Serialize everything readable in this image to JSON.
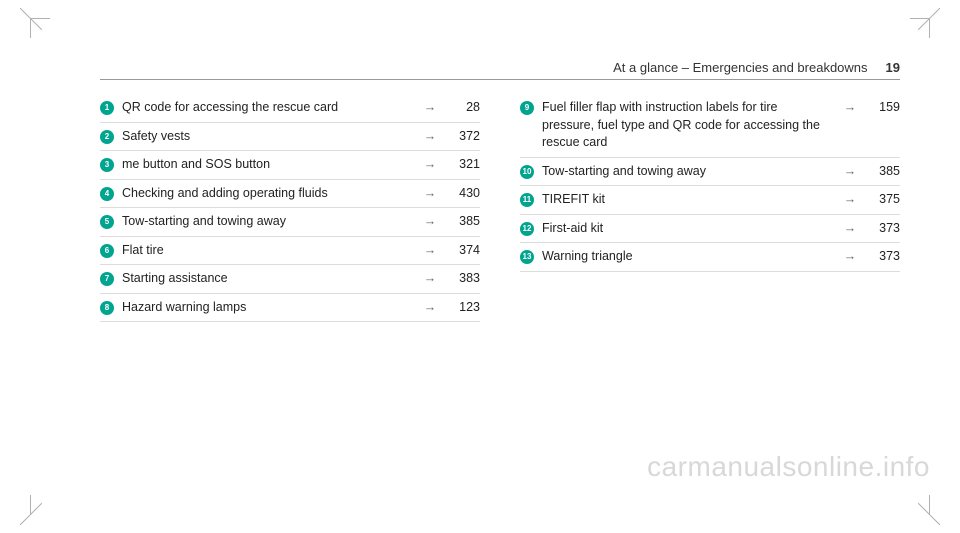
{
  "header": {
    "title": "At a glance – Emergencies and breakdowns",
    "pagenum": "19"
  },
  "arrow_glyph": "→",
  "left_items": [
    {
      "n": "1",
      "label": "QR code for accessing the rescue card",
      "page": "28"
    },
    {
      "n": "2",
      "label": "Safety vests",
      "page": "372"
    },
    {
      "n": "3",
      "label": "me button and SOS button",
      "page": "321"
    },
    {
      "n": "4",
      "label": "Checking and adding operating fluids",
      "page": "430"
    },
    {
      "n": "5",
      "label": "Tow-starting and towing away",
      "page": "385"
    },
    {
      "n": "6",
      "label": "Flat tire",
      "page": "374"
    },
    {
      "n": "7",
      "label": "Starting assistance",
      "page": "383"
    },
    {
      "n": "8",
      "label": "Hazard warning lamps",
      "page": "123"
    }
  ],
  "right_items": [
    {
      "n": "9",
      "label": "Fuel filler flap with instruction labels for tire pressure, fuel type and QR code for accessing the rescue card",
      "page": "159"
    },
    {
      "n": "10",
      "label": "Tow-starting and towing away",
      "page": "385"
    },
    {
      "n": "11",
      "label": "TIREFIT kit",
      "page": "375"
    },
    {
      "n": "12",
      "label": "First-aid kit",
      "page": "373"
    },
    {
      "n": "13",
      "label": "Warning triangle",
      "page": "373"
    }
  ],
  "watermark": "carmanualsonline.info"
}
